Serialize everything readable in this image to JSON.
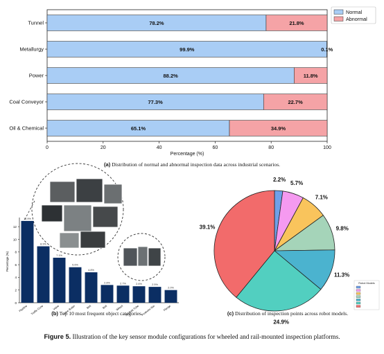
{
  "chart_data": [
    {
      "id": "a",
      "type": "bar",
      "orientation": "horizontal",
      "stacked": true,
      "categories": [
        "Tunnel",
        "Metallurgy",
        "Power",
        "Coal Conveyor",
        "Oil & Chemical"
      ],
      "series": [
        {
          "name": "Normal",
          "values": [
            78.2,
            99.9,
            88.2,
            77.3,
            65.1
          ],
          "color": "#a9cdf5"
        },
        {
          "name": "Abnormal",
          "values": [
            21.8,
            0.1,
            11.8,
            22.7,
            34.9
          ],
          "color": "#f5a3a6"
        }
      ],
      "data_labels": {
        "Normal": [
          "78.2%",
          "99.9%",
          "88.2%",
          "77.3%",
          "65.1%"
        ],
        "Abnormal": [
          "21.8%",
          "0.1%",
          "11.8%",
          "22.7%",
          "34.9%"
        ]
      },
      "xlabel": "Percentage (%)",
      "ylabel": "",
      "xlim": [
        0,
        100
      ],
      "xticks": [
        "0",
        "20",
        "40",
        "60",
        "80",
        "100"
      ],
      "legend": "top-right",
      "grid": false
    },
    {
      "id": "b",
      "type": "bar",
      "categories": [
        "Pipeline",
        "Traffic Cone",
        "Valve",
        "Valve Butter",
        "Belt",
        "Bolt",
        "Wheel",
        "Scaffold Tube",
        "Protector Bar",
        "Flange"
      ],
      "values": [
        12.9,
        8.9,
        7.1,
        5.6,
        4.8,
        2.8,
        2.7,
        2.6,
        2.5,
        2.0
      ],
      "data_labels": [
        "12.9%",
        "8.9%",
        "7.1%",
        "5.6%",
        "4.8%",
        "2.8%",
        "2.7%",
        "2.6%",
        "2.5%",
        "2.0%"
      ],
      "ylabel": "Percentage (%)",
      "xlabel": "",
      "ylim": [
        0,
        13
      ],
      "yticks": [
        "0",
        "2",
        "4",
        "6",
        "8",
        "10",
        "12"
      ],
      "color": "#0b2e63",
      "grid": false
    },
    {
      "id": "c",
      "type": "pie",
      "values": [
        2.2,
        5.7,
        7.1,
        9.8,
        11.3,
        24.9,
        39.1
      ],
      "labels": [
        "2.2%",
        "5.7%",
        "7.1%",
        "9.8%",
        "11.3%",
        "24.9%",
        "39.1%"
      ],
      "colors": [
        "#6fa0e8",
        "#f59af0",
        "#f9c45c",
        "#a5d4b9",
        "#4bb3cf",
        "#52cfc0",
        "#f26b6b"
      ],
      "legend": {
        "title": "Robot Models",
        "position": "right",
        "entries": [
          "",
          "",
          "",
          "",
          "",
          "",
          ""
        ]
      }
    }
  ],
  "captions": {
    "a_tag": "(a)",
    "a_text": " Distribution of normal and abnormal inspection data across industrial scenarios.",
    "b_tag": "(b)",
    "b_text": " Top 10 most frequent object categories.",
    "c_tag": "(c)",
    "c_text": " Distribution of inspection points across robot models.",
    "figure_tag": "Figure 5.",
    "figure_text": " Illustration of the key sensor module configurations for wheeled and rail-mounted inspection platforms."
  },
  "insets": [
    {
      "name": "photo-collage-inset",
      "description": "industrial inspection photo collage"
    },
    {
      "name": "equipment-photo-inset",
      "description": "equipment panel photo"
    }
  ]
}
